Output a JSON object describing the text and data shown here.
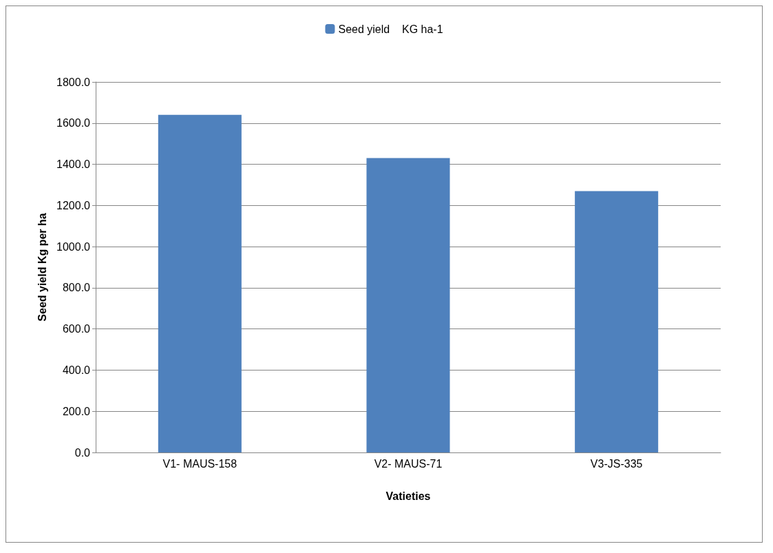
{
  "chart_data": {
    "type": "bar",
    "xlabel": "Vatieties",
    "ylabel": "Seed yield Kg per ha",
    "categories": [
      "V1- MAUS-158",
      "V2- MAUS-71",
      "V3-JS-335"
    ],
    "series": [
      {
        "name": "Seed yield    KG ha-1",
        "color": "#4f81bd",
        "values": [
          1640,
          1430,
          1270
        ]
      }
    ],
    "ylim": [
      0,
      1800
    ],
    "yticks": [
      {
        "value": 0,
        "label": "0.0"
      },
      {
        "value": 200,
        "label": "200.0"
      },
      {
        "value": 400,
        "label": "400.0"
      },
      {
        "value": 600,
        "label": "600.0"
      },
      {
        "value": 800,
        "label": "800.0"
      },
      {
        "value": 1000,
        "label": "1000.0"
      },
      {
        "value": 1200,
        "label": "1200.0"
      },
      {
        "value": 1400,
        "label": "1400.0"
      },
      {
        "value": 1600,
        "label": "1600.0"
      },
      {
        "value": 1800,
        "label": "1800.0"
      }
    ],
    "grid": "y",
    "legend": "top"
  }
}
